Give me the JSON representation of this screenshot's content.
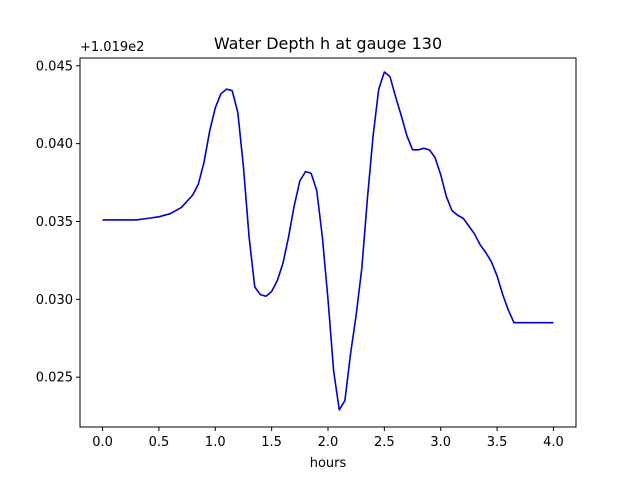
{
  "chart_data": {
    "type": "line",
    "title": "Water Depth h at gauge 130",
    "xlabel": "hours",
    "ylabel": "",
    "offset_label": "+1.019e2",
    "xlim": [
      -0.2,
      4.2
    ],
    "ylim": [
      0.0218,
      0.0455
    ],
    "xticks": [
      0.0,
      0.5,
      1.0,
      1.5,
      2.0,
      2.5,
      3.0,
      3.5,
      4.0
    ],
    "xtick_labels": [
      "0.0",
      "0.5",
      "1.0",
      "1.5",
      "2.0",
      "2.5",
      "3.0",
      "3.5",
      "4.0"
    ],
    "yticks": [
      0.025,
      0.03,
      0.035,
      0.04,
      0.045
    ],
    "ytick_labels": [
      "0.025",
      "0.030",
      "0.035",
      "0.040",
      "0.045"
    ],
    "grid": false,
    "series": [
      {
        "color": "#0000cc",
        "x": [
          0.0,
          0.1,
          0.2,
          0.3,
          0.4,
          0.5,
          0.6,
          0.7,
          0.8,
          0.85,
          0.9,
          0.95,
          1.0,
          1.05,
          1.1,
          1.15,
          1.2,
          1.25,
          1.3,
          1.35,
          1.4,
          1.45,
          1.5,
          1.55,
          1.6,
          1.65,
          1.7,
          1.75,
          1.8,
          1.85,
          1.9,
          1.95,
          2.0,
          2.05,
          2.1,
          2.15,
          2.2,
          2.25,
          2.3,
          2.35,
          2.4,
          2.45,
          2.5,
          2.55,
          2.6,
          2.65,
          2.7,
          2.75,
          2.8,
          2.85,
          2.9,
          2.95,
          3.0,
          3.05,
          3.1,
          3.15,
          3.2,
          3.25,
          3.3,
          3.35,
          3.4,
          3.45,
          3.5,
          3.55,
          3.6,
          3.65,
          3.7,
          3.75,
          3.8,
          3.85,
          3.9,
          3.95,
          4.0
        ],
        "y": [
          0.0351,
          0.0351,
          0.0351,
          0.0351,
          0.0352,
          0.0353,
          0.0355,
          0.0359,
          0.0367,
          0.0374,
          0.0388,
          0.0408,
          0.0423,
          0.0432,
          0.0435,
          0.0434,
          0.042,
          0.0385,
          0.034,
          0.0308,
          0.0303,
          0.0302,
          0.0305,
          0.0312,
          0.0323,
          0.034,
          0.036,
          0.0376,
          0.0382,
          0.0381,
          0.037,
          0.034,
          0.03,
          0.0254,
          0.0229,
          0.0235,
          0.0265,
          0.029,
          0.032,
          0.0365,
          0.0405,
          0.0435,
          0.0446,
          0.0443,
          0.043,
          0.0418,
          0.0405,
          0.0396,
          0.0396,
          0.0397,
          0.0396,
          0.0391,
          0.038,
          0.0366,
          0.0357,
          0.0354,
          0.0352,
          0.0347,
          0.0342,
          0.0335,
          0.033,
          0.0324,
          0.0315,
          0.0303,
          0.0293,
          0.0285,
          0.0285,
          0.0285,
          0.0285,
          0.0285,
          0.0285,
          0.0285,
          0.0285
        ]
      }
    ]
  }
}
